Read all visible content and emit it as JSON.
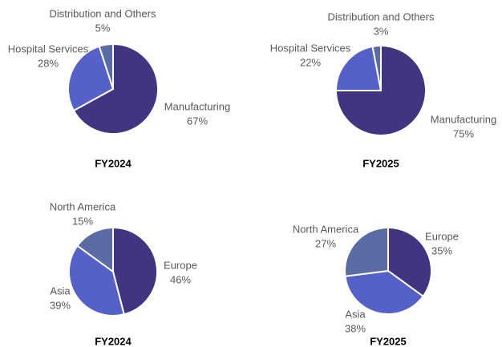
{
  "chart_data": [
    {
      "type": "pie",
      "title": "FY2024",
      "categories": [
        "Manufacturing",
        "Hospital Services",
        "Distribution and Others"
      ],
      "values": [
        67,
        28,
        5
      ],
      "value_labels": [
        "67%",
        "28%",
        "5%"
      ],
      "colors": [
        "#3f3580",
        "#5561c9",
        "#5a6ba6"
      ]
    },
    {
      "type": "pie",
      "title": "FY2025",
      "categories": [
        "Manufacturing",
        "Hospital Services",
        "Distribution and Others"
      ],
      "values": [
        75,
        22,
        3
      ],
      "value_labels": [
        "75%",
        "22%",
        "3%"
      ],
      "colors": [
        "#3f3580",
        "#5561c9",
        "#5a6ba6"
      ]
    },
    {
      "type": "pie",
      "title": "FY2024",
      "categories": [
        "Europe",
        "Asia",
        "North America"
      ],
      "values": [
        46,
        39,
        15
      ],
      "value_labels": [
        "46%",
        "39%",
        "15%"
      ],
      "colors": [
        "#3f3580",
        "#5561c9",
        "#5a6ba6"
      ]
    },
    {
      "type": "pie",
      "title": "FY2025",
      "categories": [
        "Europe",
        "Asia",
        "North America"
      ],
      "values": [
        35,
        38,
        27
      ],
      "value_labels": [
        "35%",
        "38%",
        "27%"
      ],
      "colors": [
        "#3f3580",
        "#5561c9",
        "#5a6ba6"
      ]
    }
  ]
}
